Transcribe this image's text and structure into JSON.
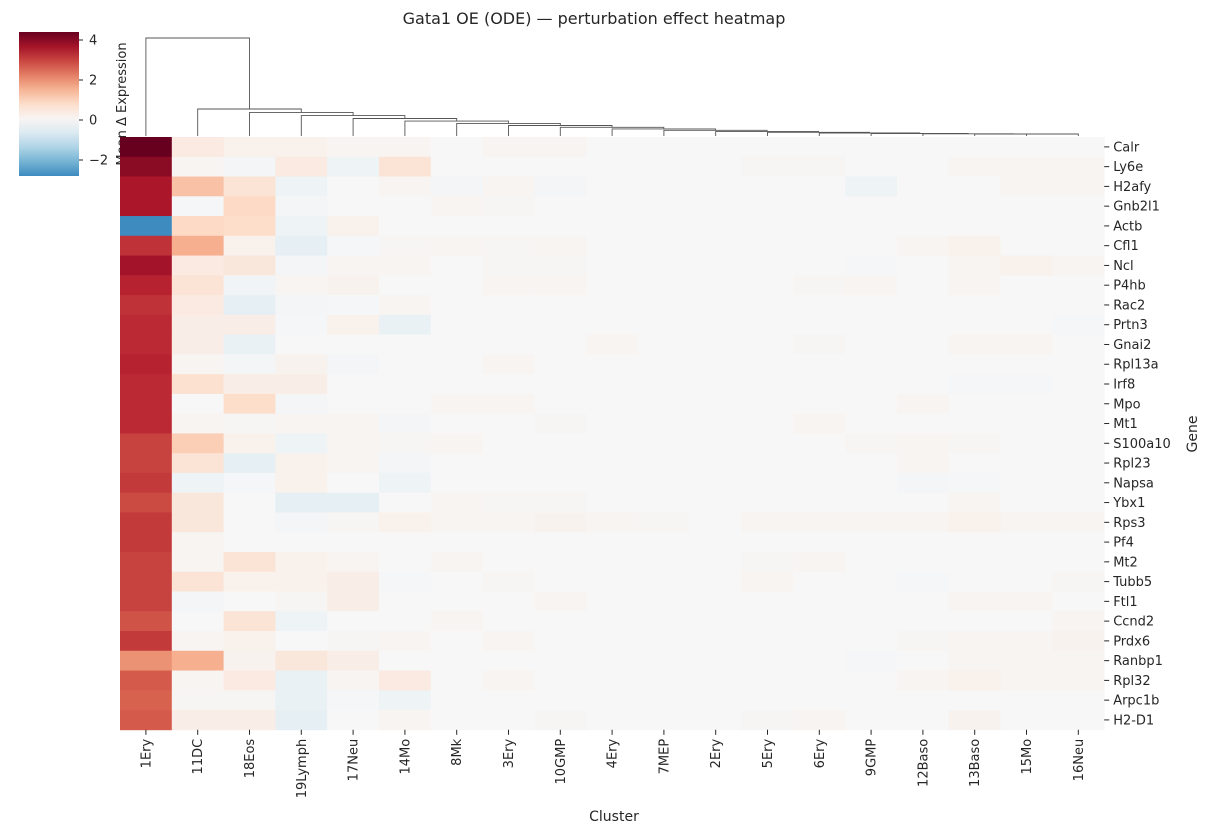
{
  "chart_data": {
    "type": "heatmap",
    "title": "Gata1 OE (ODE) — perturbation effect heatmap",
    "xlabel": "Cluster",
    "ylabel": "Gene",
    "colorbar_label": "Mean Δ Expression",
    "colorbar_ticks": [
      "4",
      "2",
      "0",
      "−2"
    ],
    "colorbar_range": [
      -2.8,
      4.4
    ],
    "colormap": "RdBu_r",
    "dendrogram": "columns",
    "columns": [
      "1Ery",
      "11DC",
      "18Eos",
      "19Lymph",
      "17Neu",
      "14Mo",
      "8Mk",
      "3Ery",
      "10GMP",
      "4Ery",
      "7MEP",
      "2Ery",
      "5Ery",
      "6Ery",
      "9GMP",
      "12Baso",
      "13Baso",
      "15Mo",
      "16Neu"
    ],
    "rows": [
      "Calr",
      "Ly6e",
      "H2afy",
      "Gnb2l1",
      "Actb",
      "Cfl1",
      "Ncl",
      "P4hb",
      "Rac2",
      "Prtn3",
      "Gnai2",
      "Rpl13a",
      "Irf8",
      "Mpo",
      "Mt1",
      "S100a10",
      "Rpl23",
      "Napsa",
      "Ybx1",
      "Rps3",
      "Pf4",
      "Mt2",
      "Tubb5",
      "Ftl1",
      "Ccnd2",
      "Prdx6",
      "Ranbp1",
      "Rpl32",
      "Arpc1b",
      "H2-D1"
    ],
    "values": [
      [
        4.4,
        0.4,
        0.2,
        0.2,
        0.1,
        0.1,
        0,
        0.1,
        0.1,
        0,
        0,
        0,
        0,
        0,
        0,
        0,
        0,
        0,
        0
      ],
      [
        4.0,
        0.1,
        -0.1,
        0.4,
        -0.2,
        0.6,
        0,
        0,
        0,
        0,
        0,
        0,
        0.05,
        0.05,
        0,
        0,
        0.1,
        0.1,
        0.1
      ],
      [
        3.6,
        1.3,
        0.6,
        -0.2,
        0,
        0.1,
        -0.1,
        0.1,
        -0.1,
        0,
        0,
        0,
        0,
        0,
        -0.2,
        0,
        0,
        0.1,
        0.1
      ],
      [
        3.6,
        -0.05,
        0.9,
        -0.1,
        0,
        0,
        0.1,
        0.05,
        0,
        0,
        0,
        0,
        0,
        0,
        0,
        0,
        0,
        0,
        0
      ],
      [
        -2.8,
        0.9,
        0.8,
        -0.2,
        0.2,
        0,
        0,
        0,
        0,
        0,
        0,
        0,
        0,
        0,
        0,
        0,
        0,
        0,
        0
      ],
      [
        3.2,
        1.6,
        0.2,
        -0.4,
        -0.05,
        0.05,
        0.1,
        0.05,
        0.1,
        0,
        0,
        0,
        0,
        0,
        0,
        0.1,
        0.2,
        0,
        0
      ],
      [
        3.7,
        0.4,
        0.5,
        -0.1,
        0.1,
        0.1,
        0,
        0.05,
        0.05,
        0,
        0,
        0,
        0,
        0,
        -0.05,
        0,
        0.1,
        0.2,
        0.1
      ],
      [
        3.4,
        0.6,
        -0.15,
        0.1,
        0.15,
        0,
        0,
        0.1,
        0.1,
        0,
        0,
        0,
        0,
        0.05,
        0.1,
        0,
        0.1,
        0,
        0
      ],
      [
        3.2,
        0.4,
        -0.4,
        -0.1,
        -0.05,
        0.1,
        0,
        0,
        0,
        0,
        0,
        0,
        0,
        0,
        0,
        0,
        0,
        0,
        0
      ],
      [
        3.3,
        0.3,
        0.3,
        -0.05,
        0.2,
        -0.3,
        0,
        0,
        0,
        0,
        0,
        0,
        0,
        0,
        0,
        0,
        0,
        0,
        -0.05
      ],
      [
        3.3,
        0.3,
        -0.3,
        0,
        0,
        0,
        0,
        0,
        0,
        0.1,
        0,
        0,
        0,
        0.05,
        0,
        0,
        0.1,
        0.1,
        0
      ],
      [
        3.4,
        0.1,
        -0.1,
        0.15,
        -0.1,
        0,
        0,
        0.1,
        0,
        0,
        0,
        0,
        0,
        0,
        0,
        0,
        0,
        0,
        0
      ],
      [
        3.3,
        0.7,
        0.3,
        0.3,
        0,
        0,
        0,
        0,
        0,
        0,
        0,
        0,
        0,
        0,
        0,
        0,
        -0.05,
        -0.05,
        0
      ],
      [
        3.3,
        0,
        0.8,
        -0.1,
        0,
        0,
        0.1,
        0.1,
        0,
        0,
        0,
        0,
        0,
        0,
        0,
        0.1,
        0,
        0,
        0
      ],
      [
        3.3,
        0.1,
        0.05,
        0.1,
        0.1,
        -0.1,
        0,
        0,
        0.05,
        0,
        0,
        0,
        0,
        0.1,
        0,
        0,
        0,
        0,
        0
      ],
      [
        3.0,
        1.1,
        0.2,
        -0.2,
        0.1,
        0.05,
        0.1,
        0,
        0,
        0,
        0,
        0,
        0,
        0,
        0.05,
        0.1,
        0.05,
        0,
        0
      ],
      [
        3.0,
        0.6,
        -0.4,
        0.2,
        0.1,
        -0.1,
        0,
        0,
        0,
        0,
        0,
        0,
        0,
        0,
        0,
        0.1,
        0,
        0,
        0
      ],
      [
        3.1,
        -0.2,
        -0.05,
        0.2,
        0,
        -0.2,
        0,
        0,
        0,
        0,
        0,
        0,
        0,
        0,
        0,
        -0.1,
        -0.05,
        0,
        0
      ],
      [
        2.9,
        0.5,
        0,
        -0.4,
        -0.4,
        0,
        0.1,
        0.05,
        0.05,
        0,
        0,
        0,
        0,
        0,
        0,
        0,
        0.1,
        0,
        0
      ],
      [
        3.1,
        0.5,
        0,
        -0.1,
        0.05,
        0.2,
        0.1,
        0.1,
        0.15,
        0.1,
        0.05,
        0,
        0.1,
        0.1,
        0.1,
        0.1,
        0.2,
        0.1,
        0.1
      ],
      [
        3.1,
        0.1,
        0,
        0,
        0,
        0,
        0,
        0,
        0,
        0,
        0,
        0,
        0,
        0,
        0,
        0,
        0,
        0,
        0
      ],
      [
        3.0,
        0.1,
        0.6,
        0.2,
        0.1,
        0,
        0.1,
        0,
        0,
        0,
        0,
        0,
        0.05,
        0.1,
        0,
        0,
        0,
        0,
        0
      ],
      [
        3.0,
        0.6,
        0.2,
        0.2,
        0.3,
        -0.05,
        0,
        0.05,
        0,
        0,
        0,
        0,
        0.1,
        0,
        0,
        -0.05,
        0,
        0,
        0.05
      ],
      [
        3.0,
        -0.1,
        0,
        0.05,
        0.3,
        0,
        0,
        0,
        0.1,
        0,
        0,
        0,
        0,
        0,
        0,
        0,
        0.1,
        0.1,
        0
      ],
      [
        2.8,
        0,
        0.6,
        -0.2,
        0,
        0,
        0.1,
        0,
        0,
        0,
        0,
        0,
        0,
        0,
        0,
        0,
        0,
        0,
        0.1
      ],
      [
        3.1,
        0.1,
        0.2,
        0,
        0.05,
        0.1,
        0,
        0.1,
        0,
        0,
        0,
        0,
        0,
        0,
        0,
        0.05,
        0.1,
        0.1,
        0.15
      ],
      [
        2.0,
        1.6,
        0.15,
        0.5,
        0.3,
        0,
        0,
        0,
        0,
        0,
        0,
        0,
        0,
        0,
        -0.05,
        0,
        0.1,
        0.1,
        0.1
      ],
      [
        2.7,
        0.1,
        0.4,
        -0.3,
        0.1,
        0.4,
        0,
        0.1,
        0,
        0,
        0,
        0,
        0,
        0,
        0,
        0.1,
        0.2,
        0.1,
        0.1
      ],
      [
        2.6,
        0.05,
        0.05,
        -0.3,
        -0.05,
        -0.2,
        0,
        0,
        0,
        0,
        0,
        0,
        0,
        0,
        0,
        0,
        0,
        0,
        0
      ],
      [
        2.7,
        0.3,
        0.3,
        -0.4,
        0,
        0.1,
        0,
        0,
        0.05,
        0,
        0,
        0,
        0.05,
        0.1,
        0,
        0,
        0.15,
        0,
        0
      ]
    ]
  }
}
